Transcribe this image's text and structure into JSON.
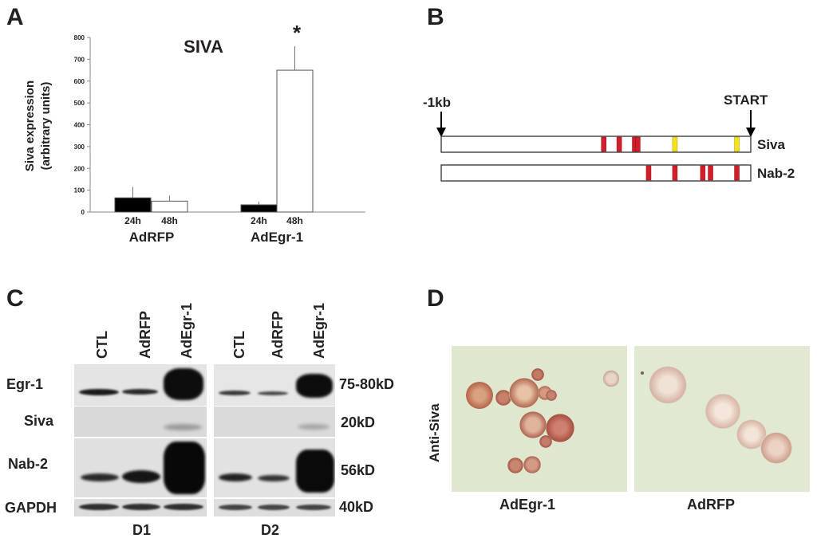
{
  "panels": {
    "a": "A",
    "b": "B",
    "c": "C",
    "d": "D"
  },
  "chart_data": {
    "type": "bar",
    "title": "SIVA",
    "ylabel_line1": "Siva expression",
    "ylabel_line2": "(arbitrary units)",
    "ylim": [
      0,
      800
    ],
    "yticks": [
      "0",
      "100",
      "200",
      "300",
      "400",
      "500",
      "600",
      "700",
      "800"
    ],
    "groups": [
      "AdRFP",
      "AdEgr-1"
    ],
    "timepoints": [
      "24h",
      "48h"
    ],
    "bars": [
      {
        "group": "AdRFP",
        "time": "24h",
        "value": 65,
        "err": 50,
        "fill": "#000000"
      },
      {
        "group": "AdRFP",
        "time": "48h",
        "value": 50,
        "err": 25,
        "fill": "#ffffff"
      },
      {
        "group": "AdEgr-1",
        "time": "24h",
        "value": 33,
        "err": 15,
        "fill": "#000000"
      },
      {
        "group": "AdEgr-1",
        "time": "48h",
        "value": 650,
        "err": 110,
        "fill": "#ffffff"
      }
    ],
    "annotation": "*"
  },
  "promoter": {
    "left_label": "-1kb",
    "right_label": "START",
    "genes": [
      {
        "name": "Siva",
        "red_sites": [
          0.525,
          0.575,
          0.625,
          0.635
        ],
        "yellow_sites": [
          0.755,
          0.955
        ]
      },
      {
        "name": "Nab-2",
        "red_sites": [
          0.67,
          0.755,
          0.845,
          0.87,
          0.955
        ],
        "yellow_sites": []
      }
    ],
    "colors": {
      "red": "#d21f2b",
      "yellow": "#f4e31b"
    }
  },
  "western": {
    "lanes": [
      "CTL",
      "AdRFP",
      "AdEgr-1"
    ],
    "rows": [
      "Egr-1",
      "Siva",
      "Nab-2",
      "GAPDH"
    ],
    "sizes": [
      "75-80kD",
      "20kD",
      "56kD",
      "40kD"
    ],
    "donors": [
      "D1",
      "D2"
    ]
  },
  "micrographs": {
    "ylabel": "Anti-Siva",
    "labels": [
      "AdEgr-1",
      "AdRFP"
    ]
  }
}
